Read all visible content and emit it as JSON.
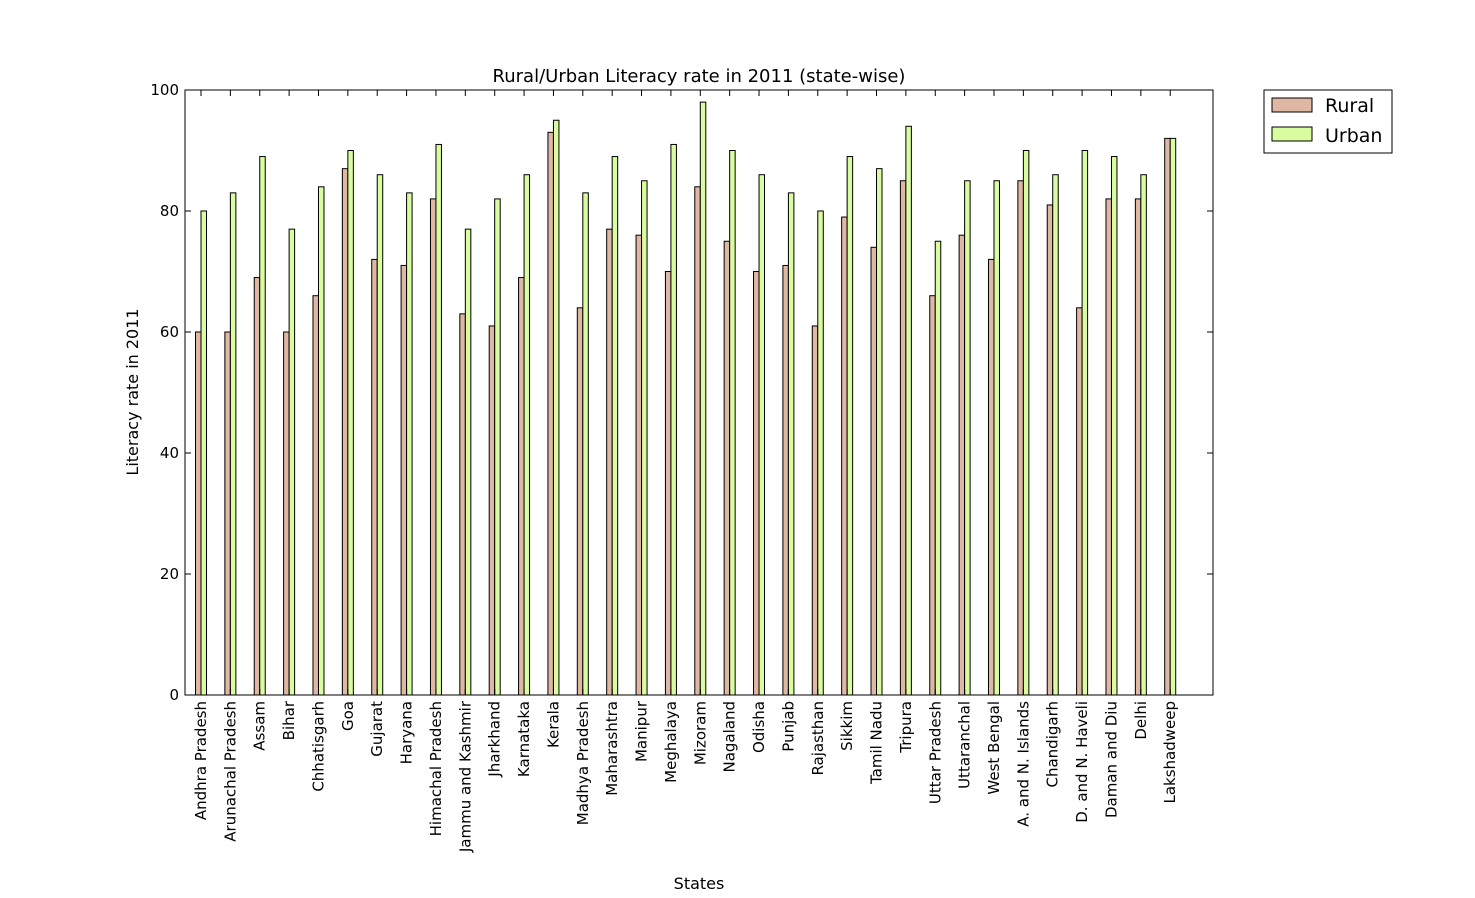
{
  "chart_data": {
    "type": "bar",
    "title": "Rural/Urban Literacy rate in 2011 (state-wise)",
    "xlabel": "States",
    "ylabel": "Literacy rate in 2011",
    "ylim": [
      0,
      100
    ],
    "yticks": [
      "0",
      "20",
      "40",
      "60",
      "80",
      "100"
    ],
    "grid": false,
    "legend_position": "outside top-right",
    "categories": [
      "Andhra Pradesh",
      "Arunachal Pradesh",
      "Assam",
      "Bihar",
      "Chhatisgarh",
      "Goa",
      "Gujarat",
      "Haryana",
      "Himachal Pradesh",
      "Jammu and Kashmir",
      "Jharkhand",
      "Karnataka",
      "Kerala",
      "Madhya Pradesh",
      "Maharashtra",
      "Manipur",
      "Meghalaya",
      "Mizoram",
      "Nagaland",
      "Odisha",
      "Punjab",
      "Rajasthan",
      "Sikkim",
      "Tamil Nadu",
      "Tripura",
      "Uttar Pradesh",
      "Uttaranchal",
      "West Bengal",
      "A. and N. Islands",
      "Chandigarh",
      "D. and N. Haveli",
      "Daman and Diu",
      "Delhi",
      "Lakshadweep"
    ],
    "series": [
      {
        "name": "Rural",
        "color": "#dfb8a4",
        "values": [
          60,
          60,
          69,
          60,
          66,
          87,
          72,
          71,
          82,
          63,
          61,
          69,
          93,
          64,
          77,
          76,
          70,
          84,
          75,
          70,
          71,
          61,
          79,
          74,
          85,
          66,
          76,
          72,
          85,
          81,
          64,
          82,
          82,
          92
        ]
      },
      {
        "name": "Urban",
        "color": "#d9fca0",
        "values": [
          80,
          83,
          89,
          77,
          84,
          90,
          86,
          83,
          91,
          77,
          82,
          86,
          95,
          83,
          89,
          85,
          91,
          98,
          90,
          86,
          83,
          80,
          89,
          87,
          94,
          75,
          85,
          85,
          90,
          86,
          90,
          89,
          86,
          92
        ]
      }
    ]
  }
}
